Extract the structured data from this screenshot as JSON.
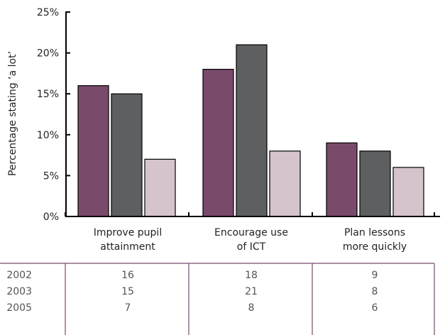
{
  "chart_data": {
    "type": "bar",
    "ylabel": "Percentage stating ‘a lot’",
    "xlabel": "",
    "ylim": [
      0,
      25
    ],
    "y_ticks": [
      "0%",
      "5%",
      "10%",
      "15%",
      "20%",
      "25%"
    ],
    "y_tick_values": [
      0,
      5,
      10,
      15,
      20,
      25
    ],
    "categories": [
      [
        "Improve pupil",
        "attainment"
      ],
      [
        "Encourage use",
        "of ICT"
      ],
      [
        "Plan lessons",
        "more quickly"
      ]
    ],
    "series": [
      {
        "name": "2002",
        "color": "#7a4a6b",
        "values": [
          16,
          18,
          9
        ]
      },
      {
        "name": "2003",
        "color": "#5e5f61",
        "values": [
          15,
          21,
          8
        ]
      },
      {
        "name": "2005",
        "color": "#d6c4cc",
        "values": [
          7,
          8,
          6
        ]
      }
    ],
    "table_border_color": "#7a4a6b"
  }
}
